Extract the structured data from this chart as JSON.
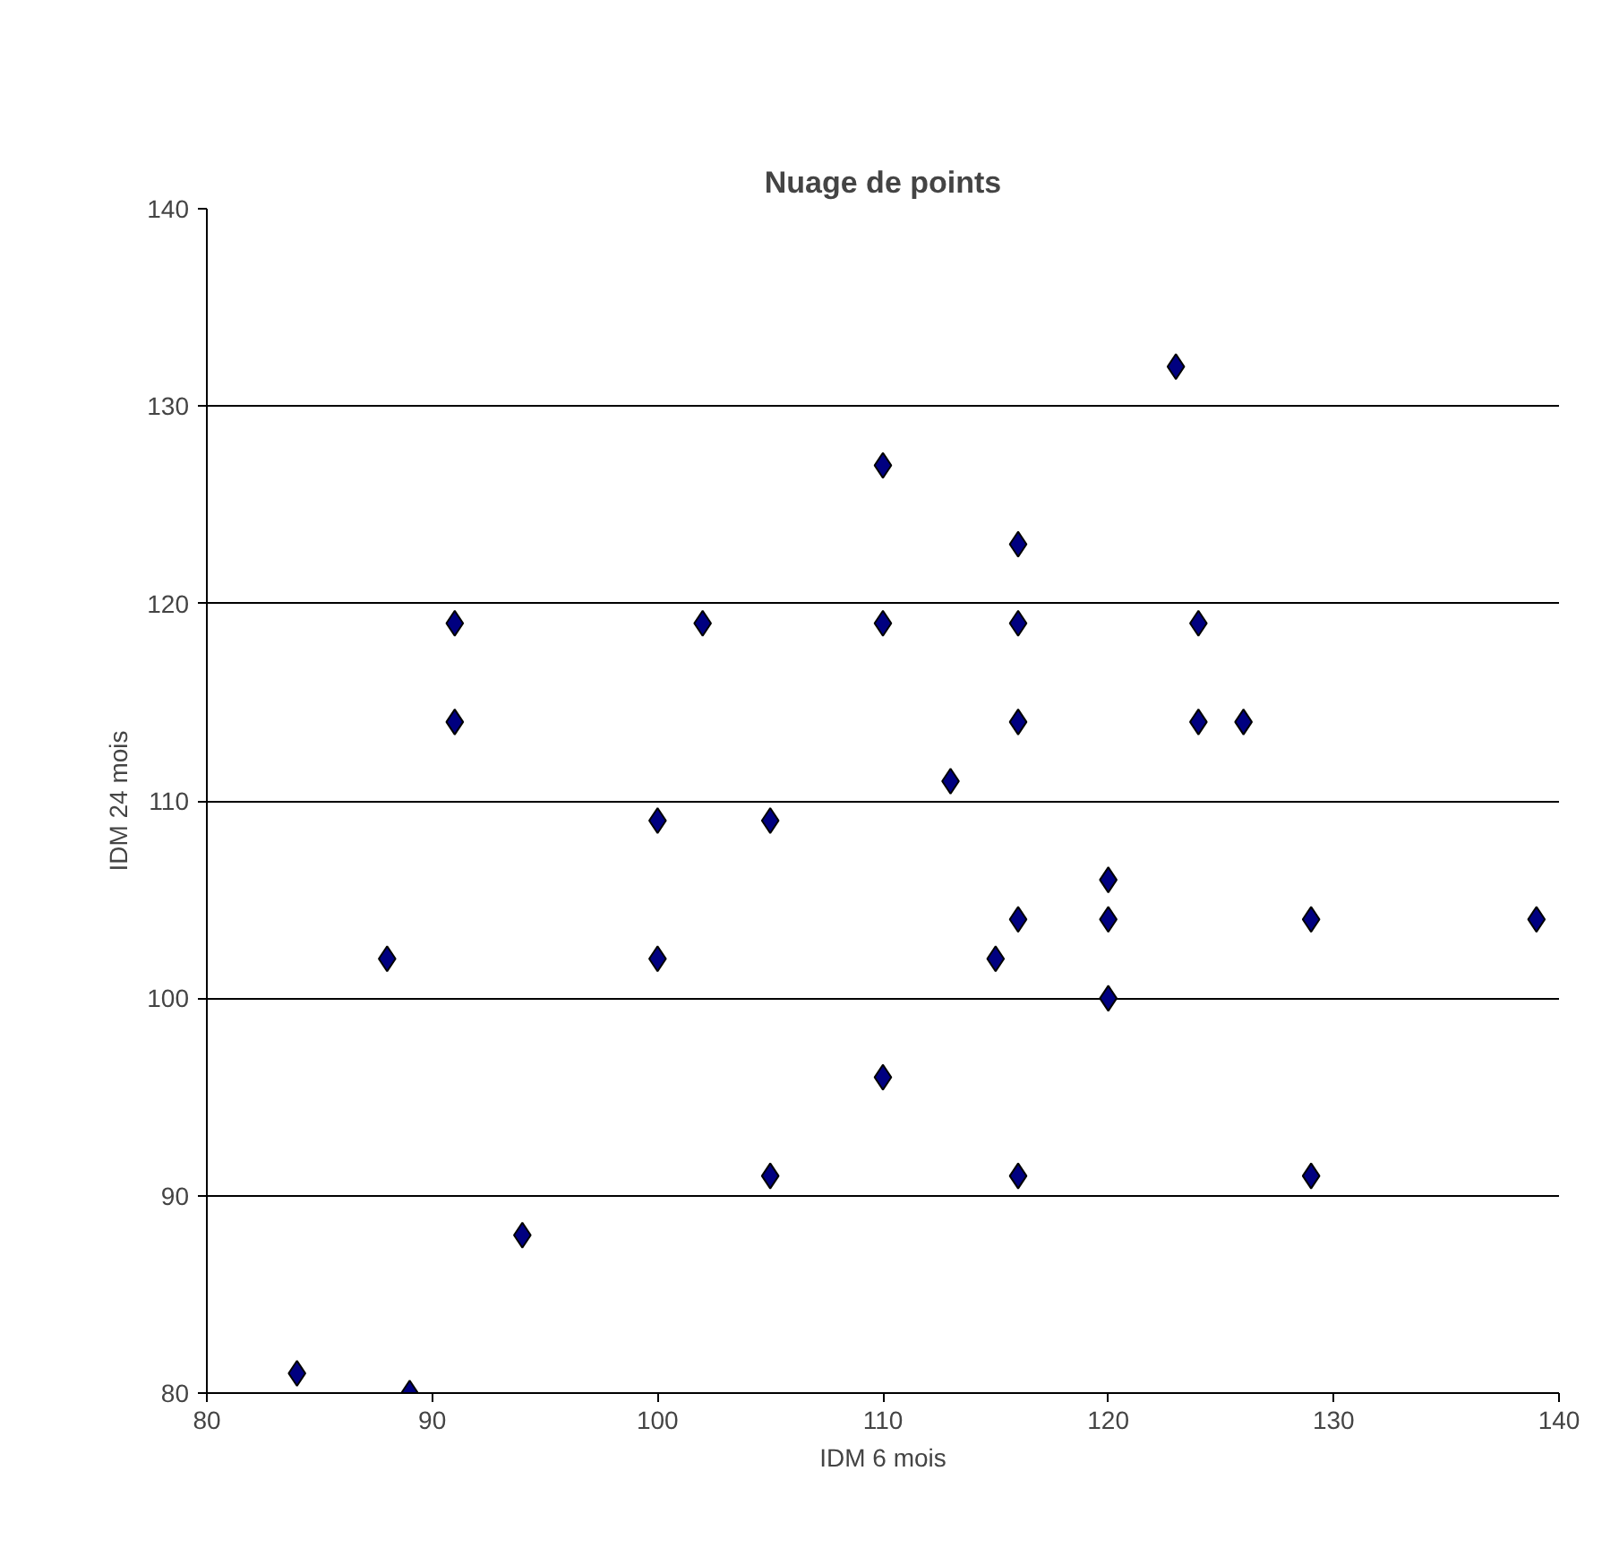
{
  "chart_data": {
    "type": "scatter",
    "title": "Nuage de points",
    "xlabel": "IDM 6 mois",
    "ylabel": "IDM 24 mois",
    "x": [
      84,
      89,
      88,
      91,
      91,
      94,
      100,
      100,
      102,
      105,
      105,
      110,
      110,
      110,
      113,
      115,
      116,
      116,
      116,
      116,
      116,
      120,
      120,
      120,
      123,
      124,
      124,
      126,
      129,
      129,
      139
    ],
    "series": [
      {
        "color": "#000080",
        "values": [
          81,
          80,
          102,
          114,
          119,
          88,
          109,
          102,
          119,
          109,
          91,
          127,
          119,
          96,
          111,
          102,
          123,
          119,
          114,
          104,
          91,
          106,
          104,
          100,
          132,
          119,
          114,
          114,
          104,
          91,
          104
        ]
      }
    ],
    "xlim": [
      80,
      140
    ],
    "xticks": [
      80,
      90,
      100,
      110,
      120,
      130,
      140
    ],
    "ylim": [
      80,
      140
    ],
    "yticks": [
      80,
      90,
      100,
      110,
      120,
      130,
      140
    ],
    "grid": "y",
    "marker": "diamond"
  }
}
